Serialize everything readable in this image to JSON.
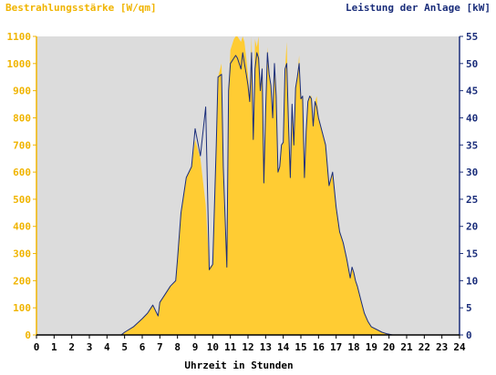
{
  "colors": {
    "plot_background": "#dcdcdc",
    "irradiance": "#ffcc33",
    "power": "#1a2d7a",
    "left_axis_text": "#f0b400",
    "right_axis_text": "#1a2d7a",
    "x_axis_text": "#000000"
  },
  "chart_data": {
    "type": "area",
    "left_axis_title": "Bestrahlungsstärke [W/qm]",
    "right_axis_title": "Leistung der Anlage [kW]",
    "xlabel": "Uhrzeit in Stunden",
    "xlim": [
      0,
      24
    ],
    "ylim_left": [
      0,
      1100
    ],
    "ylim_right": [
      0,
      55
    ],
    "x_ticks": [
      "0",
      "1",
      "2",
      "3",
      "4",
      "5",
      "6",
      "7",
      "8",
      "9",
      "10",
      "11",
      "12",
      "13",
      "14",
      "15",
      "16",
      "17",
      "18",
      "19",
      "20",
      "21",
      "22",
      "23",
      "24"
    ],
    "left_ticks": [
      "0",
      "100",
      "200",
      "300",
      "400",
      "500",
      "600",
      "700",
      "800",
      "900",
      "1000",
      "1100"
    ],
    "right_ticks": [
      "0",
      "5",
      "10",
      "15",
      "20",
      "25",
      "30",
      "35",
      "40",
      "45",
      "50",
      "55"
    ],
    "grid": false,
    "series": [
      {
        "name": "Bestrahlungsstärke [W/qm]",
        "axis": "left",
        "style": "area",
        "x": [
          0,
          4.8,
          5.0,
          5.5,
          6.0,
          6.3,
          6.6,
          6.9,
          7.0,
          7.3,
          7.6,
          7.9,
          8.0,
          8.2,
          8.5,
          8.8,
          9.0,
          9.3,
          9.6,
          9.8,
          10.0,
          10.2,
          10.3,
          10.5,
          10.6,
          10.8,
          10.9,
          11.0,
          11.2,
          11.3,
          11.4,
          11.6,
          11.7,
          11.8,
          11.9,
          12.0,
          12.1,
          12.2,
          12.3,
          12.4,
          12.5,
          12.6,
          12.7,
          12.8,
          12.9,
          13.0,
          13.1,
          13.2,
          13.3,
          13.4,
          13.5,
          13.6,
          13.7,
          13.8,
          13.9,
          14.0,
          14.1,
          14.2,
          14.3,
          14.4,
          14.5,
          14.6,
          14.7,
          14.8,
          14.9,
          15.0,
          15.1,
          15.2,
          15.3,
          15.4,
          15.5,
          15.6,
          15.7,
          15.8,
          15.9,
          16.0,
          16.2,
          16.4,
          16.6,
          16.8,
          17.0,
          17.2,
          17.4,
          17.6,
          17.8,
          17.9,
          18.0,
          18.1,
          18.2,
          18.4,
          18.6,
          18.8,
          19.0,
          19.3,
          19.6,
          19.9,
          20.2,
          20.4,
          24
        ],
        "y": [
          0,
          0,
          10,
          30,
          60,
          80,
          110,
          70,
          120,
          150,
          180,
          200,
          280,
          450,
          580,
          620,
          720,
          650,
          480,
          250,
          260,
          700,
          950,
          1000,
          600,
          250,
          900,
          1050,
          1090,
          1100,
          1100,
          1080,
          1100,
          1080,
          1020,
          960,
          880,
          1100,
          720,
          1090,
          1060,
          1100,
          900,
          990,
          560,
          820,
          1060,
          960,
          910,
          800,
          1000,
          880,
          600,
          620,
          700,
          710,
          980,
          1080,
          770,
          580,
          850,
          700,
          910,
          950,
          1030,
          870,
          880,
          580,
          750,
          860,
          880,
          880,
          770,
          860,
          880,
          800,
          750,
          700,
          550,
          600,
          470,
          380,
          340,
          280,
          210,
          250,
          230,
          200,
          180,
          130,
          80,
          50,
          30,
          20,
          10,
          5,
          0,
          0,
          0
        ],
        "color": "#ffcc33"
      },
      {
        "name": "Leistung der Anlage [kW]",
        "axis": "right",
        "style": "line",
        "x": [
          0,
          4.8,
          5.0,
          5.5,
          6.0,
          6.3,
          6.6,
          6.9,
          7.0,
          7.3,
          7.6,
          7.9,
          8.0,
          8.2,
          8.5,
          8.8,
          9.0,
          9.3,
          9.6,
          9.8,
          10.0,
          10.2,
          10.3,
          10.5,
          10.6,
          10.8,
          10.9,
          11.0,
          11.2,
          11.3,
          11.4,
          11.6,
          11.7,
          11.8,
          11.9,
          12.0,
          12.1,
          12.2,
          12.3,
          12.4,
          12.5,
          12.6,
          12.7,
          12.8,
          12.9,
          13.0,
          13.1,
          13.2,
          13.3,
          13.4,
          13.5,
          13.6,
          13.7,
          13.8,
          13.9,
          14.0,
          14.1,
          14.2,
          14.3,
          14.4,
          14.5,
          14.6,
          14.7,
          14.8,
          14.9,
          15.0,
          15.1,
          15.2,
          15.3,
          15.4,
          15.5,
          15.6,
          15.7,
          15.8,
          15.9,
          16.0,
          16.2,
          16.4,
          16.6,
          16.8,
          17.0,
          17.2,
          17.4,
          17.6,
          17.8,
          17.9,
          18.0,
          18.1,
          18.2,
          18.4,
          18.6,
          18.8,
          19.0,
          19.3,
          19.6,
          19.9,
          20.2,
          20.4,
          24
        ],
        "y": [
          0,
          0,
          0.5,
          1.5,
          3,
          4,
          5.5,
          3.5,
          6,
          7.5,
          9,
          10,
          14,
          22.5,
          29,
          31,
          38,
          33,
          42,
          12,
          13,
          35,
          47.5,
          48,
          31,
          12.5,
          45,
          50,
          51,
          51.5,
          51,
          49,
          52,
          50,
          48,
          46,
          43,
          52,
          36,
          49,
          52,
          51,
          45,
          49,
          28,
          41,
          52,
          48,
          46,
          40,
          50,
          44,
          30,
          31,
          35,
          35.5,
          49,
          50,
          38.5,
          29,
          42.5,
          35,
          45.5,
          47.5,
          50,
          43.5,
          44,
          29,
          37.5,
          43,
          44,
          43.5,
          38.5,
          43,
          42,
          40,
          37.5,
          35,
          27.5,
          30,
          23.5,
          19,
          17,
          14,
          10.5,
          12.5,
          11.5,
          10,
          9,
          6.5,
          4,
          2.5,
          1.5,
          1,
          0.5,
          0.2,
          0,
          0,
          0
        ],
        "color": "#1a2d7a"
      }
    ]
  }
}
